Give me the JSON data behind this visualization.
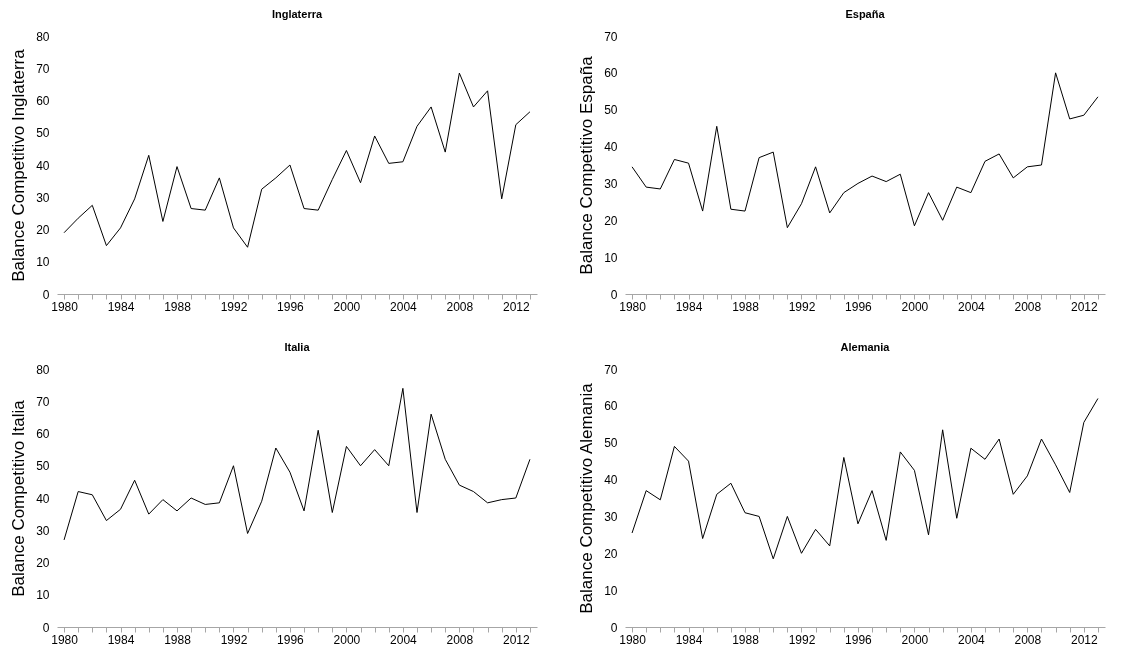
{
  "chart_data": [
    {
      "type": "line",
      "title": "Inglaterra",
      "ylabel": "Balance Competitivo Inglaterra",
      "grid": false,
      "marker": "none",
      "x": [
        1980,
        1981,
        1982,
        1983,
        1984,
        1985,
        1986,
        1987,
        1988,
        1989,
        1990,
        1991,
        1992,
        1993,
        1994,
        1995,
        1996,
        1997,
        1998,
        1999,
        2000,
        2001,
        2002,
        2003,
        2004,
        2005,
        2006,
        2007,
        2008,
        2009,
        2010,
        2011,
        2012,
        2013
      ],
      "series": [
        {
          "color": "#000000",
          "values": [
            19,
            23.5,
            27.5,
            15,
            20.5,
            29.5,
            43,
            22.5,
            39.5,
            26.5,
            26,
            36,
            20.5,
            14.5,
            32.5,
            36,
            40,
            26.5,
            26,
            35.5,
            44.5,
            34.5,
            49,
            40.5,
            41,
            52,
            58,
            44,
            68.5,
            58,
            63,
            29.5,
            52.5,
            56.5
          ]
        }
      ],
      "xlim": [
        1979.5,
        2013.5
      ],
      "ylim": [
        0,
        80
      ],
      "yticks": [
        0,
        10,
        20,
        30,
        40,
        50,
        60,
        70,
        80
      ],
      "xticks": [
        1980,
        {
          "value": 1981,
          "label": null
        },
        {
          "value": 1982,
          "label": null
        },
        {
          "value": 1983,
          "label": null
        },
        1984,
        {
          "value": 1985,
          "label": null
        },
        {
          "value": 1986,
          "label": null
        },
        {
          "value": 1987,
          "label": null
        },
        1988,
        {
          "value": 1989,
          "label": null
        },
        {
          "value": 1990,
          "label": null
        },
        {
          "value": 1991,
          "label": null
        },
        1992,
        {
          "value": 1993,
          "label": null
        },
        {
          "value": 1994,
          "label": null
        },
        {
          "value": 1995,
          "label": null
        },
        1996,
        {
          "value": 1997,
          "label": null
        },
        {
          "value": 1998,
          "label": null
        },
        {
          "value": 1999,
          "label": null
        },
        2000,
        {
          "value": 2001,
          "label": null
        },
        {
          "value": 2002,
          "label": null
        },
        {
          "value": 2003,
          "label": null
        },
        2004,
        {
          "value": 2005,
          "label": null
        },
        {
          "value": 2006,
          "label": null
        },
        {
          "value": 2007,
          "label": null
        },
        2008,
        {
          "value": 2009,
          "label": null
        },
        {
          "value": 2010,
          "label": null
        },
        {
          "value": 2011,
          "label": null
        },
        2012,
        {
          "value": 2013,
          "label": null
        }
      ]
    },
    {
      "type": "line",
      "title": "España",
      "ylabel": "Balance Competitivo España",
      "grid": false,
      "marker": "none",
      "x": [
        1980,
        1981,
        1982,
        1983,
        1984,
        1985,
        1986,
        1987,
        1988,
        1989,
        1990,
        1991,
        1992,
        1993,
        1994,
        1995,
        1996,
        1997,
        1998,
        1999,
        2000,
        2001,
        2002,
        2003,
        2004,
        2005,
        2006,
        2007,
        2008,
        2009,
        2010,
        2011,
        2012,
        2013
      ],
      "series": [
        {
          "color": "#000000",
          "values": [
            34.5,
            29,
            28.5,
            36.5,
            35.5,
            22.5,
            45.5,
            23,
            22.5,
            37,
            38.5,
            18,
            24.5,
            34.5,
            22,
            27.5,
            30,
            32,
            30.5,
            32.5,
            18.5,
            27.5,
            20,
            29,
            27.5,
            36,
            38,
            31.5,
            34.5,
            35,
            60,
            47.5,
            48.5,
            53.5
          ]
        }
      ],
      "xlim": [
        1979.5,
        2013.5
      ],
      "ylim": [
        0,
        70
      ],
      "yticks": [
        0,
        10,
        20,
        30,
        40,
        50,
        60,
        70
      ],
      "xticks": [
        1980,
        {
          "value": 1981,
          "label": null
        },
        {
          "value": 1982,
          "label": null
        },
        {
          "value": 1983,
          "label": null
        },
        1984,
        {
          "value": 1985,
          "label": null
        },
        {
          "value": 1986,
          "label": null
        },
        {
          "value": 1987,
          "label": null
        },
        1988,
        {
          "value": 1989,
          "label": null
        },
        {
          "value": 1990,
          "label": null
        },
        {
          "value": 1991,
          "label": null
        },
        1992,
        {
          "value": 1993,
          "label": null
        },
        {
          "value": 1994,
          "label": null
        },
        {
          "value": 1995,
          "label": null
        },
        1996,
        {
          "value": 1997,
          "label": null
        },
        {
          "value": 1998,
          "label": null
        },
        {
          "value": 1999,
          "label": null
        },
        2000,
        {
          "value": 2001,
          "label": null
        },
        {
          "value": 2002,
          "label": null
        },
        {
          "value": 2003,
          "label": null
        },
        2004,
        {
          "value": 2005,
          "label": null
        },
        {
          "value": 2006,
          "label": null
        },
        {
          "value": 2007,
          "label": null
        },
        2008,
        {
          "value": 2009,
          "label": null
        },
        {
          "value": 2010,
          "label": null
        },
        {
          "value": 2011,
          "label": null
        },
        2012,
        {
          "value": 2013,
          "label": null
        }
      ]
    },
    {
      "type": "line",
      "title": "Italia",
      "ylabel": "Balance Competitivo Italia",
      "grid": false,
      "marker": "none",
      "x": [
        1980,
        1981,
        1982,
        1983,
        1984,
        1985,
        1986,
        1987,
        1988,
        1989,
        1990,
        1991,
        1992,
        1993,
        1994,
        1995,
        1996,
        1997,
        1998,
        1999,
        2000,
        2001,
        2002,
        2003,
        2004,
        2005,
        2006,
        2007,
        2008,
        2009,
        2010,
        2011,
        2012,
        2013
      ],
      "series": [
        {
          "color": "#000000",
          "values": [
            27,
            42,
            41,
            33,
            36.5,
            45.5,
            35,
            39.5,
            36,
            40,
            38,
            38.5,
            50,
            29,
            39,
            55.5,
            48,
            36,
            61,
            35.5,
            56,
            50,
            55,
            50,
            74,
            35.5,
            66,
            52,
            44,
            42,
            38.5,
            39.5,
            40,
            52
          ]
        }
      ],
      "xlim": [
        1979.5,
        2013.5
      ],
      "ylim": [
        0,
        80
      ],
      "yticks": [
        0,
        10,
        20,
        30,
        40,
        50,
        60,
        70,
        80
      ],
      "xticks": [
        1980,
        {
          "value": 1981,
          "label": null
        },
        {
          "value": 1982,
          "label": null
        },
        {
          "value": 1983,
          "label": null
        },
        1984,
        {
          "value": 1985,
          "label": null
        },
        {
          "value": 1986,
          "label": null
        },
        {
          "value": 1987,
          "label": null
        },
        1988,
        {
          "value": 1989,
          "label": null
        },
        {
          "value": 1990,
          "label": null
        },
        {
          "value": 1991,
          "label": null
        },
        1992,
        {
          "value": 1993,
          "label": null
        },
        {
          "value": 1994,
          "label": null
        },
        {
          "value": 1995,
          "label": null
        },
        1996,
        {
          "value": 1997,
          "label": null
        },
        {
          "value": 1998,
          "label": null
        },
        {
          "value": 1999,
          "label": null
        },
        2000,
        {
          "value": 2001,
          "label": null
        },
        {
          "value": 2002,
          "label": null
        },
        {
          "value": 2003,
          "label": null
        },
        2004,
        {
          "value": 2005,
          "label": null
        },
        {
          "value": 2006,
          "label": null
        },
        {
          "value": 2007,
          "label": null
        },
        2008,
        {
          "value": 2009,
          "label": null
        },
        {
          "value": 2010,
          "label": null
        },
        {
          "value": 2011,
          "label": null
        },
        2012,
        {
          "value": 2013,
          "label": null
        }
      ]
    },
    {
      "type": "line",
      "title": "Alemania",
      "ylabel": "Balance Competitivo Alemania",
      "grid": false,
      "marker": "none",
      "x": [
        1980,
        1981,
        1982,
        1983,
        1984,
        1985,
        1986,
        1987,
        1988,
        1989,
        1990,
        1991,
        1992,
        1993,
        1994,
        1995,
        1996,
        1997,
        1998,
        1999,
        2000,
        2001,
        2002,
        2003,
        2004,
        2005,
        2006,
        2007,
        2008,
        2009,
        2010,
        2011,
        2012,
        2013
      ],
      "series": [
        {
          "color": "#000000",
          "values": [
            25.5,
            37,
            34.5,
            49,
            45,
            24,
            36,
            39,
            31,
            30,
            18.5,
            30,
            20,
            26.5,
            22,
            46,
            28,
            37,
            23.5,
            47.5,
            42.5,
            25,
            53.5,
            29.5,
            48.5,
            45.5,
            51,
            36,
            41,
            51,
            44,
            36.5,
            55.5,
            62
          ]
        }
      ],
      "xlim": [
        1979.5,
        2013.5
      ],
      "ylim": [
        0,
        70
      ],
      "yticks": [
        0,
        10,
        20,
        30,
        40,
        50,
        60,
        70
      ],
      "xticks": [
        1980,
        {
          "value": 1981,
          "label": null
        },
        {
          "value": 1982,
          "label": null
        },
        {
          "value": 1983,
          "label": null
        },
        1984,
        {
          "value": 1985,
          "label": null
        },
        {
          "value": 1986,
          "label": null
        },
        {
          "value": 1987,
          "label": null
        },
        1988,
        {
          "value": 1989,
          "label": null
        },
        {
          "value": 1990,
          "label": null
        },
        {
          "value": 1991,
          "label": null
        },
        1992,
        {
          "value": 1993,
          "label": null
        },
        {
          "value": 1994,
          "label": null
        },
        {
          "value": 1995,
          "label": null
        },
        1996,
        {
          "value": 1997,
          "label": null
        },
        {
          "value": 1998,
          "label": null
        },
        {
          "value": 1999,
          "label": null
        },
        2000,
        {
          "value": 2001,
          "label": null
        },
        {
          "value": 2002,
          "label": null
        },
        {
          "value": 2003,
          "label": null
        },
        2004,
        {
          "value": 2005,
          "label": null
        },
        {
          "value": 2006,
          "label": null
        },
        {
          "value": 2007,
          "label": null
        },
        2008,
        {
          "value": 2009,
          "label": null
        },
        {
          "value": 2010,
          "label": null
        },
        {
          "value": 2011,
          "label": null
        },
        2012,
        {
          "value": 2013,
          "label": null
        }
      ]
    }
  ]
}
